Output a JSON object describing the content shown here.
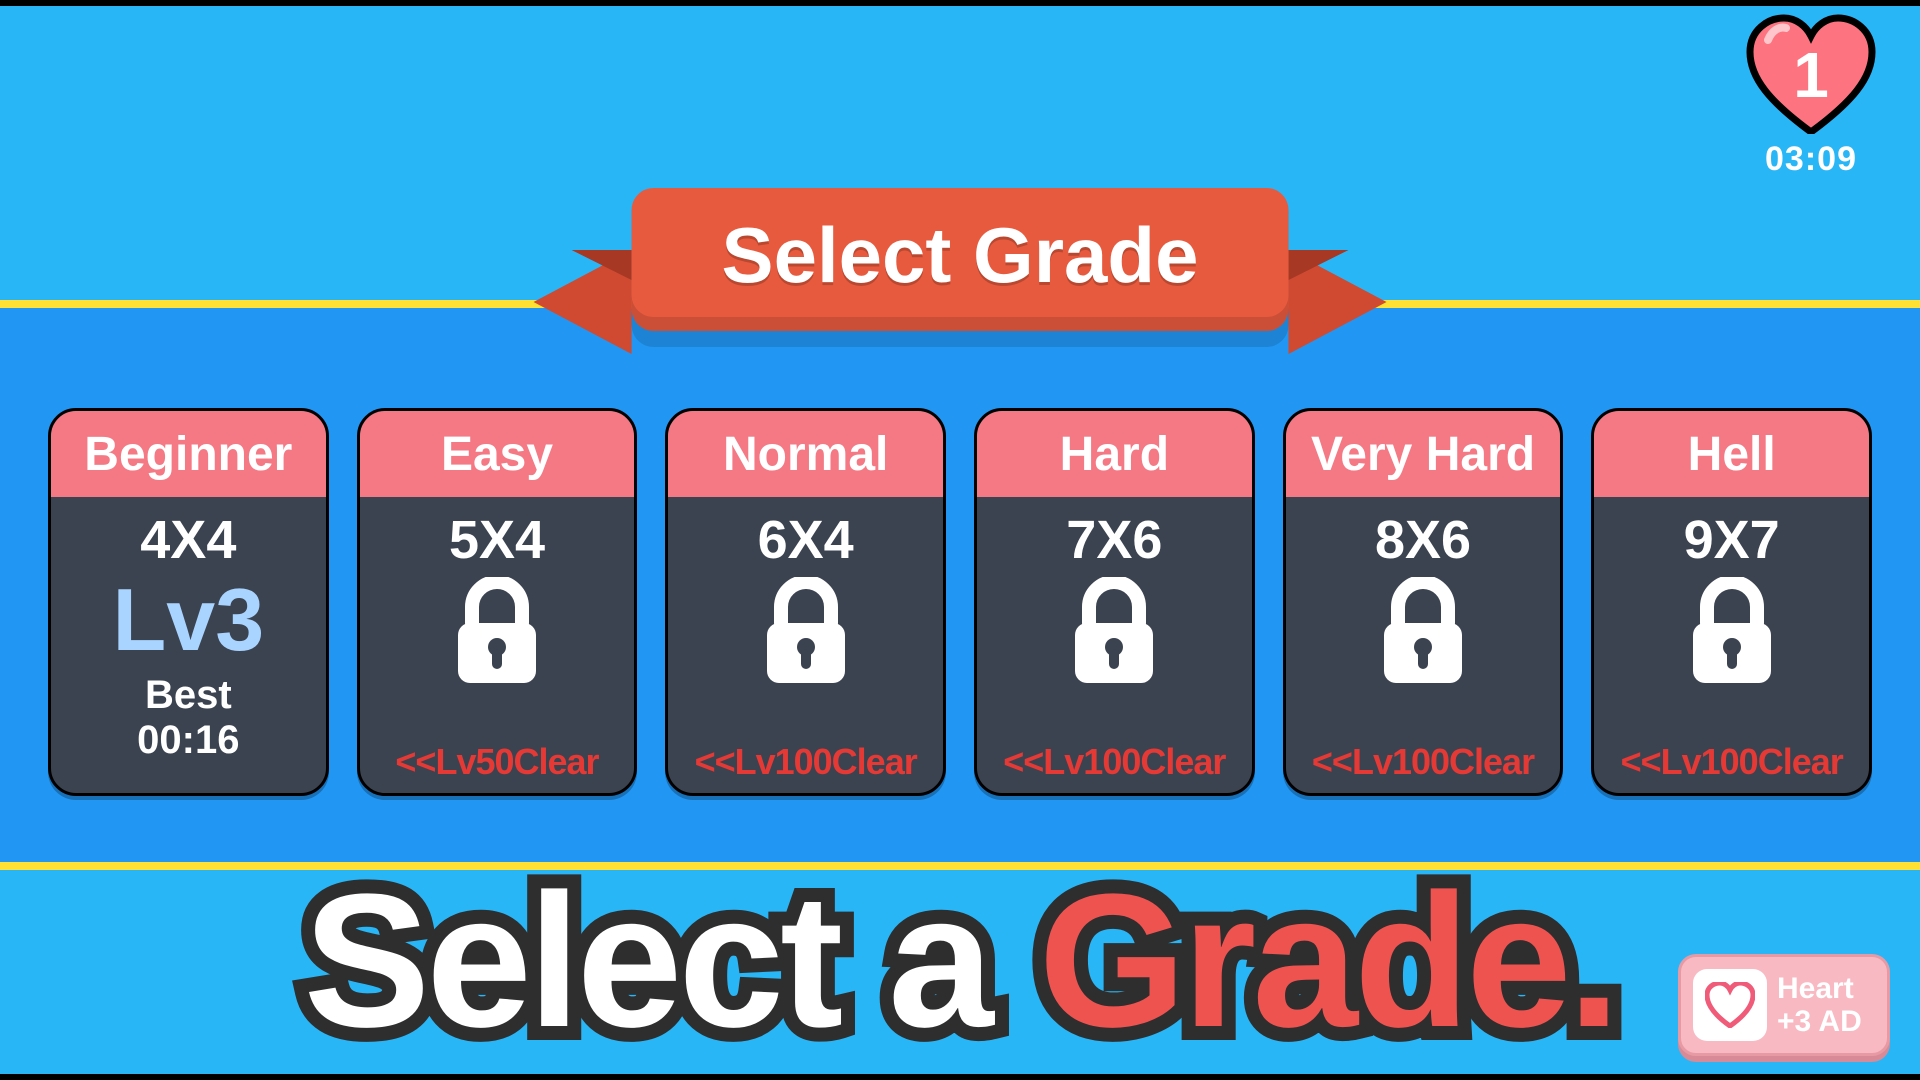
{
  "colors": {
    "bg_light": "#29b6f6",
    "bg_band": "#2196f3",
    "band_border": "#ffe033",
    "ribbon": "#e85a3e",
    "ribbon_tail": "#cf4a31",
    "card_bg": "#3b4350",
    "card_head": "#f47984",
    "level_text": "#a9d4ff",
    "unlock_text": "#e53935",
    "heart_fill": "#fe7380",
    "heart_stroke": "#000000",
    "title_stroke": "#2e2e2e",
    "title_accent": "#ef5350",
    "ad_bg": "#f8b9c2"
  },
  "header": {
    "heart_count": "1",
    "timer": "03:09"
  },
  "ribbon": {
    "title": "Select Grade"
  },
  "cards": [
    {
      "name": "Beginner",
      "grid": "4X4",
      "locked": false,
      "level": "Lv3",
      "best_label": "Best",
      "best_time": "00:16"
    },
    {
      "name": "Easy",
      "grid": "5X4",
      "locked": true,
      "unlock": "<<Lv50Clear"
    },
    {
      "name": "Normal",
      "grid": "6X4",
      "locked": true,
      "unlock": "<<Lv100Clear"
    },
    {
      "name": "Hard",
      "grid": "7X6",
      "locked": true,
      "unlock": "<<Lv100Clear"
    },
    {
      "name": "Very Hard",
      "grid": "8X6",
      "locked": true,
      "unlock": "<<Lv100Clear"
    },
    {
      "name": "Hell",
      "grid": "9X7",
      "locked": true,
      "unlock": "<<Lv100Clear"
    }
  ],
  "big_title": {
    "part1": "Select a ",
    "part2": "Grade."
  },
  "ad": {
    "line1": "Heart",
    "line2": "+3 AD"
  }
}
